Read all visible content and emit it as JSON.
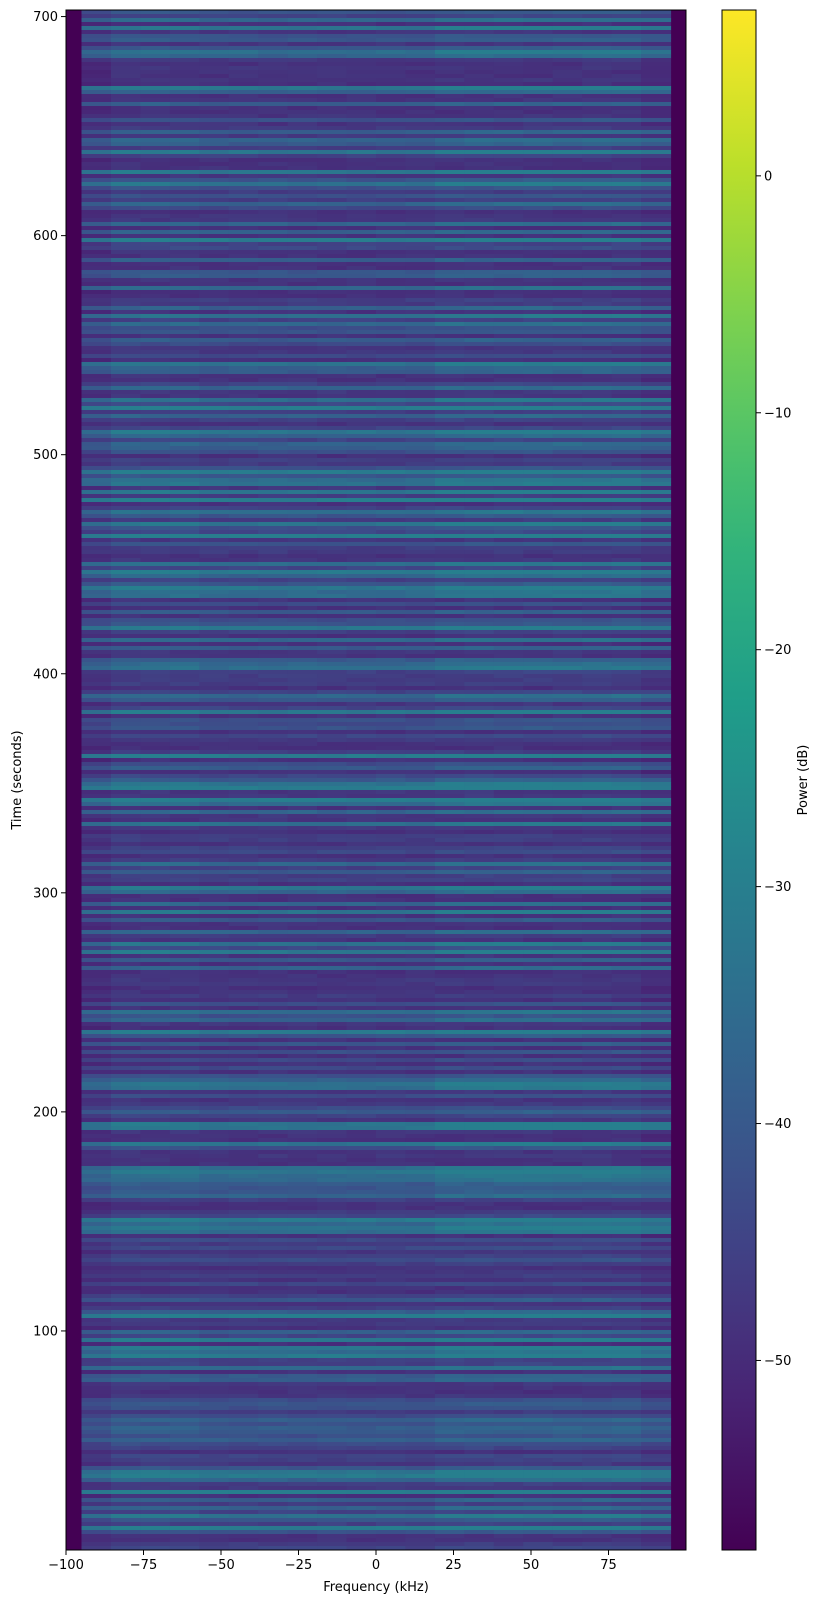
{
  "chart_data": {
    "type": "heatmap",
    "xlabel": "Frequency (kHz)",
    "ylabel": "Time (seconds)",
    "xlim": [
      -100,
      100
    ],
    "ylim": [
      0,
      703
    ],
    "x_ticks": [
      -100,
      -75,
      -50,
      -25,
      0,
      25,
      50,
      75
    ],
    "x_tick_labels": [
      "−100",
      "−75",
      "−50",
      "−25",
      "0",
      "25",
      "50",
      "75"
    ],
    "y_ticks": [
      100,
      200,
      300,
      400,
      500,
      600,
      700
    ],
    "y_tick_labels": [
      "100",
      "200",
      "300",
      "400",
      "500",
      "600",
      "700"
    ],
    "colormap": "viridis",
    "colorbar": {
      "label": "Power (dB)",
      "vmin": -58,
      "vmax": 7,
      "ticks": [
        0,
        -10,
        -20,
        -30,
        -40,
        -50
      ],
      "tick_labels": [
        "0",
        "−10",
        "−20",
        "−30",
        "−40",
        "−50"
      ]
    },
    "signal_band_khz": [
      -95,
      95
    ],
    "noise_floor_db": -58,
    "typical_band_power_db": [
      -45,
      -30
    ],
    "grid": false
  }
}
